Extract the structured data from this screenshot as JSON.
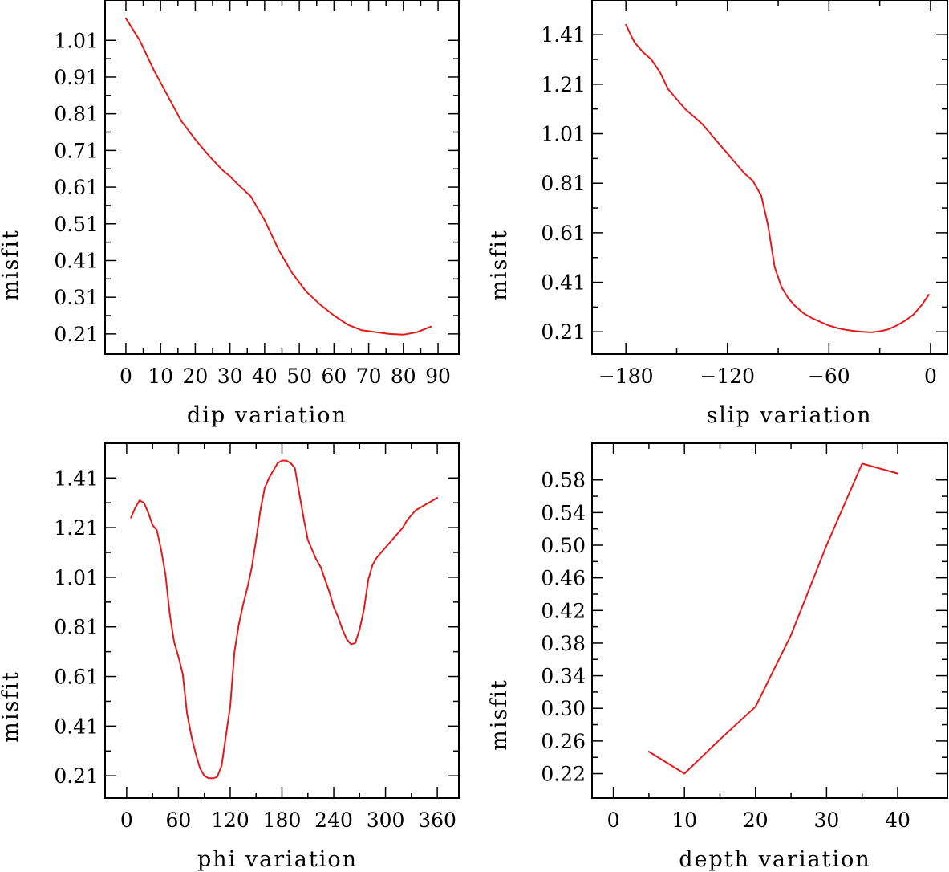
{
  "chart_data": [
    {
      "type": "line",
      "xlabel": "dip      variation",
      "ylabel": "misfit",
      "xlim": [
        -6,
        96
      ],
      "ylim": [
        0.155,
        1.12
      ],
      "xticks": [
        0,
        10,
        20,
        30,
        40,
        50,
        60,
        70,
        80,
        90
      ],
      "yticks": [
        0.21,
        0.31,
        0.41,
        0.51,
        0.61,
        0.71,
        0.81,
        0.91,
        1.01
      ],
      "xtick_labels": [
        "0",
        "10",
        "20",
        "30",
        "40",
        "50",
        "60",
        "70",
        "80",
        "90"
      ],
      "ytick_labels": [
        "0.21",
        "0.31",
        "0.41",
        "0.51",
        "0.61",
        "0.71",
        "0.81",
        "0.91",
        "1.01"
      ],
      "x": [
        0,
        4,
        8,
        12,
        16,
        20,
        24,
        28,
        30,
        32,
        36,
        40,
        44,
        48,
        52,
        56,
        60,
        64,
        68,
        72,
        76,
        80,
        84,
        88
      ],
      "y": [
        1.07,
        1.01,
        0.93,
        0.86,
        0.79,
        0.74,
        0.695,
        0.655,
        0.64,
        0.62,
        0.585,
        0.52,
        0.44,
        0.375,
        0.325,
        0.29,
        0.26,
        0.235,
        0.22,
        0.215,
        0.21,
        0.208,
        0.215,
        0.23
      ],
      "series_name": "misfit"
    },
    {
      "type": "line",
      "xlabel": "slip    variation",
      "ylabel": "misfit",
      "xlim": [
        -200,
        10
      ],
      "ylim": [
        0.12,
        1.55
      ],
      "xticks": [
        -180,
        -120,
        -60,
        0
      ],
      "yticks": [
        0.21,
        0.41,
        0.61,
        0.81,
        1.01,
        1.21,
        1.41
      ],
      "xtick_labels": [
        "−180",
        "−120",
        "−60",
        "0"
      ],
      "ytick_labels": [
        "0.21",
        "0.41",
        "0.61",
        "0.81",
        "1.01",
        "1.21",
        "1.41"
      ],
      "x": [
        -180,
        -175,
        -170,
        -165,
        -160,
        -155,
        -150,
        -145,
        -140,
        -135,
        -130,
        -125,
        -120,
        -115,
        -110,
        -105,
        -100,
        -96,
        -92,
        -88,
        -84,
        -80,
        -75,
        -70,
        -65,
        -60,
        -55,
        -50,
        -45,
        -40,
        -35,
        -30,
        -25,
        -20,
        -15,
        -10,
        -5,
        -1
      ],
      "y": [
        1.45,
        1.38,
        1.34,
        1.31,
        1.26,
        1.19,
        1.15,
        1.11,
        1.08,
        1.05,
        1.01,
        0.97,
        0.93,
        0.89,
        0.85,
        0.82,
        0.76,
        0.64,
        0.47,
        0.39,
        0.345,
        0.315,
        0.285,
        0.265,
        0.25,
        0.235,
        0.225,
        0.218,
        0.213,
        0.21,
        0.208,
        0.212,
        0.22,
        0.235,
        0.255,
        0.28,
        0.32,
        0.36
      ],
      "series_name": "misfit"
    },
    {
      "type": "line",
      "xlabel": "phi      variation",
      "ylabel": "misfit",
      "xlim": [
        -25,
        385
      ],
      "ylim": [
        0.12,
        1.55
      ],
      "xticks": [
        0,
        60,
        120,
        180,
        240,
        300,
        360
      ],
      "yticks": [
        0.21,
        0.41,
        0.61,
        0.81,
        1.01,
        1.21,
        1.41
      ],
      "xtick_labels": [
        "0",
        "60",
        "120",
        "180",
        "240",
        "300",
        "360"
      ],
      "ytick_labels": [
        "0.21",
        "0.41",
        "0.61",
        "0.81",
        "1.01",
        "1.21",
        "1.41"
      ],
      "x": [
        5,
        10,
        15,
        20,
        25,
        30,
        35,
        40,
        45,
        50,
        55,
        60,
        65,
        70,
        75,
        80,
        85,
        90,
        95,
        100,
        105,
        110,
        115,
        120,
        125,
        130,
        135,
        140,
        145,
        150,
        155,
        160,
        165,
        170,
        175,
        180,
        185,
        190,
        195,
        200,
        205,
        210,
        215,
        220,
        225,
        230,
        235,
        240,
        245,
        250,
        255,
        260,
        265,
        270,
        275,
        280,
        285,
        290,
        295,
        300,
        305,
        310,
        315,
        320,
        325,
        330,
        335,
        340,
        345,
        350,
        355,
        360
      ],
      "y": [
        1.25,
        1.29,
        1.32,
        1.31,
        1.27,
        1.22,
        1.2,
        1.12,
        1.02,
        0.86,
        0.75,
        0.69,
        0.62,
        0.46,
        0.37,
        0.3,
        0.24,
        0.21,
        0.2,
        0.2,
        0.205,
        0.25,
        0.37,
        0.49,
        0.71,
        0.82,
        0.9,
        0.97,
        1.05,
        1.16,
        1.28,
        1.37,
        1.41,
        1.44,
        1.47,
        1.48,
        1.48,
        1.47,
        1.45,
        1.35,
        1.25,
        1.16,
        1.12,
        1.08,
        1.05,
        1.0,
        0.95,
        0.89,
        0.85,
        0.8,
        0.76,
        0.74,
        0.745,
        0.8,
        0.88,
        1.0,
        1.06,
        1.09,
        1.11,
        1.13,
        1.15,
        1.17,
        1.19,
        1.21,
        1.24,
        1.26,
        1.28,
        1.29,
        1.3,
        1.31,
        1.32,
        1.33
      ],
      "series_name": "misfit"
    },
    {
      "type": "line",
      "xlabel": "depth   variation",
      "ylabel": "misfit",
      "xlim": [
        -3,
        47
      ],
      "ylim": [
        0.19,
        0.625
      ],
      "xticks": [
        0,
        10,
        20,
        30,
        40
      ],
      "yticks": [
        0.22,
        0.26,
        0.3,
        0.34,
        0.38,
        0.42,
        0.46,
        0.5,
        0.54,
        0.58
      ],
      "xtick_labels": [
        "0",
        "10",
        "20",
        "30",
        "40"
      ],
      "ytick_labels": [
        "0.22",
        "0.26",
        "0.30",
        "0.34",
        "0.38",
        "0.42",
        "0.46",
        "0.50",
        "0.54",
        "0.58"
      ],
      "x": [
        5,
        10,
        15,
        20,
        25,
        30,
        35,
        40
      ],
      "y": [
        0.247,
        0.22,
        0.262,
        0.302,
        0.39,
        0.5,
        0.6,
        0.588
      ],
      "series_name": "misfit"
    }
  ],
  "colors": {
    "line": "#e31a1c",
    "axes": "#000000"
  }
}
